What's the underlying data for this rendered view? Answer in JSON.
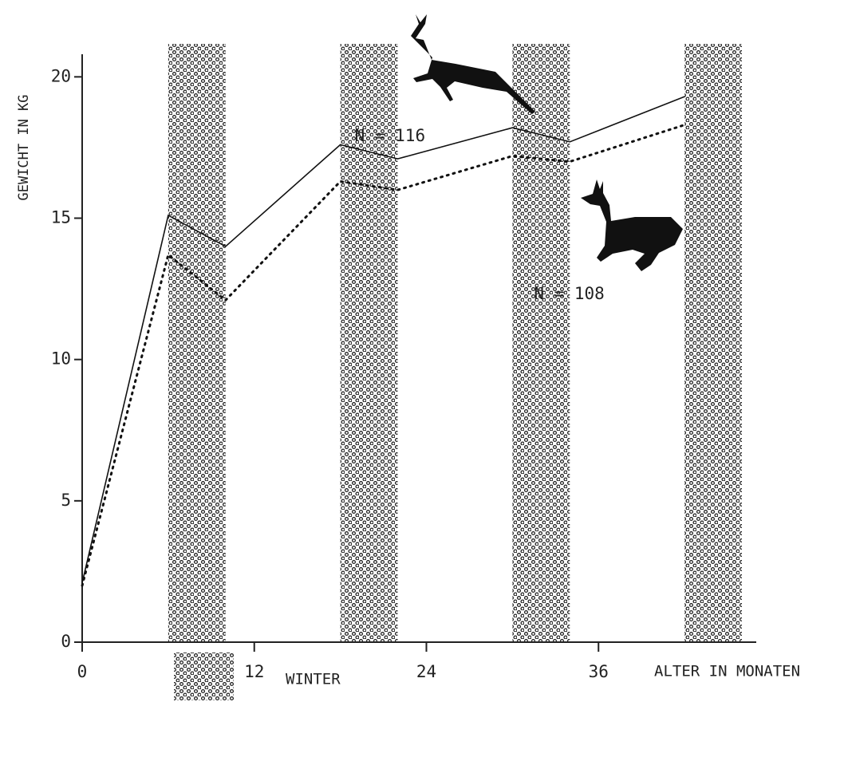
{
  "chart_data": {
    "type": "line",
    "ylabel": "GEWICHT IN KG",
    "xlabel": "ALTER IN MONATEN",
    "x": [
      0,
      6,
      10,
      18,
      22,
      30,
      34,
      42
    ],
    "series": [
      {
        "color": "#111111",
        "style": "solid",
        "values": [
          2.1,
          15.1,
          14.0,
          17.6,
          17.1,
          18.2,
          17.7,
          19.3
        ]
      },
      {
        "color": "#111111",
        "style": "dotted",
        "values": [
          2.0,
          13.7,
          12.1,
          16.3,
          16.0,
          17.2,
          17.0,
          18.3
        ]
      }
    ],
    "winter_bands": [
      [
        6,
        10
      ],
      [
        18,
        22
      ],
      [
        30,
        34
      ],
      [
        42,
        46
      ]
    ],
    "legend_label": "WINTER",
    "annotations": [
      {
        "text": "N = 116",
        "x": 19,
        "y": 17.9
      },
      {
        "text": "N = 108",
        "x": 31.5,
        "y": 12.3
      }
    ],
    "xlim": [
      0,
      47
    ],
    "ylim": [
      0,
      20.8
    ],
    "xticks": [
      0,
      12,
      24,
      36
    ],
    "yticks": [
      0,
      5,
      10,
      15,
      20
    ]
  }
}
